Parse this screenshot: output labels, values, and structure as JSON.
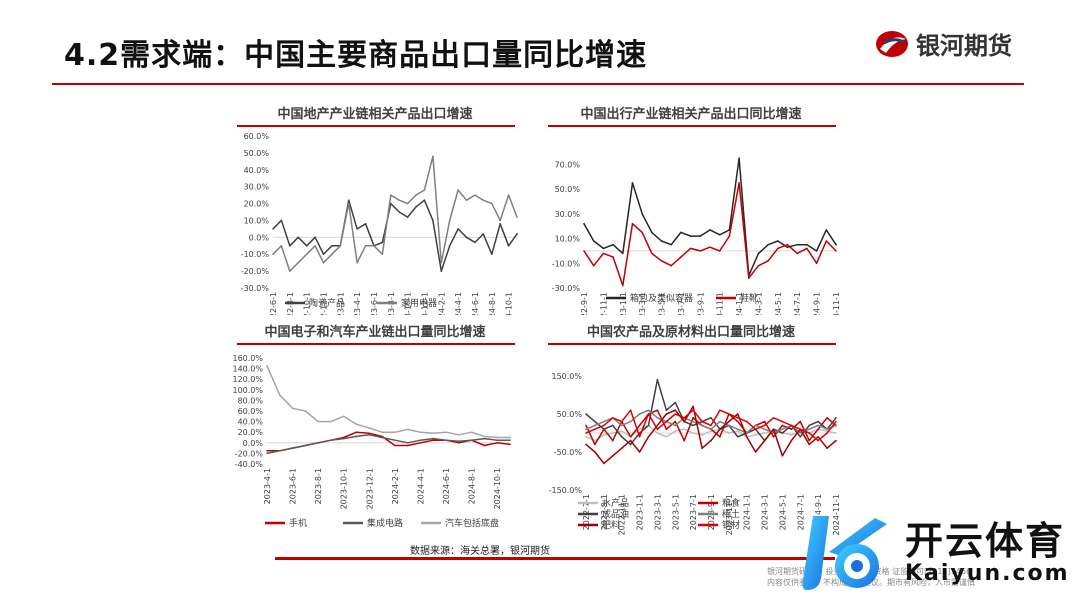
{
  "header": {
    "title": "4.2需求端：中国主要商品出口量同比增速",
    "logo_text": "银河期货"
  },
  "footer": {
    "source": "数据来源：海关总署，银河期货",
    "disclaimer_line1": "银河期货研究所 投资咨询业务资格 证监许可[2011]1466",
    "disclaimer_line2": "内容仅供参考，不构成投资建议。期市有风险，入市需谨慎"
  },
  "watermark": {
    "cn": "开云体育",
    "en": "Kaiyun.com"
  },
  "colors": {
    "brand_red": "#c00000",
    "dark_gray": "#404040",
    "mid_gray": "#808080",
    "light_gray": "#a6a6a6"
  },
  "chart_data": [
    {
      "type": "line",
      "title": "中国地产产业链相关产品出口增速",
      "x": [
        "2022-6-1",
        "2022-7-1",
        "2022-8-1",
        "2022-9-1",
        "2022-10-1",
        "2022-11-1",
        "2022-12-1",
        "2023-1-1",
        "2023-2-1",
        "2023-3-1",
        "2023-4-1",
        "2023-5-1",
        "2023-6-1",
        "2023-7-1",
        "2023-8-1",
        "2023-9-1",
        "2023-10-1",
        "2023-11-1",
        "2023-12-1",
        "2024-1-1",
        "2024-2-1",
        "2024-3-1",
        "2024-4-1",
        "2024-5-1",
        "2024-6-1",
        "2024-7-1",
        "2024-8-1",
        "2024-9-1",
        "2024-10-1",
        "2024-11-1"
      ],
      "xticks": [
        "2022-6-1",
        "2022-8-1",
        "2022-10-1",
        "2022-12-1",
        "2023-2-1",
        "2023-4-1",
        "2023-6-1",
        "2023-8-1",
        "2023-10-1",
        "2023-12-1",
        "2024-2-1",
        "2024-4-1",
        "2024-6-1",
        "2024-8-1",
        "2024-10-1"
      ],
      "ylim": [
        -30,
        60
      ],
      "yticks": [
        -30,
        -20,
        -10,
        0,
        10,
        20,
        30,
        40,
        50,
        60
      ],
      "ytick_labels": [
        "-30.0%",
        "-20.0%",
        "-10.0%",
        "0.0%",
        "10.0%",
        "20.0%",
        "30.0%",
        "40.0%",
        "50.0%",
        "60.0%"
      ],
      "series": [
        {
          "name": "陶瓷产品",
          "color": "#404040",
          "values": [
            5,
            10,
            -5,
            0,
            -5,
            0,
            -10,
            -5,
            -5,
            22,
            5,
            8,
            -5,
            -3,
            20,
            15,
            12,
            18,
            22,
            10,
            -20,
            -5,
            5,
            0,
            -3,
            2,
            -10,
            8,
            -5,
            2
          ]
        },
        {
          "name": "家用电器",
          "color": "#808080",
          "values": [
            -10,
            -5,
            -20,
            -15,
            -10,
            -5,
            -15,
            -10,
            -5,
            20,
            -15,
            -5,
            -5,
            -10,
            25,
            22,
            20,
            25,
            28,
            48,
            -15,
            10,
            28,
            22,
            25,
            22,
            20,
            10,
            25,
            12
          ]
        }
      ]
    },
    {
      "type": "line",
      "title": "中国出行产业链相关产品出口同比增速",
      "x": [
        "2022-9-1",
        "2022-10-1",
        "2022-11-1",
        "2022-12-1",
        "2023-1-1",
        "2023-2-1",
        "2023-3-1",
        "2023-4-1",
        "2023-5-1",
        "2023-6-1",
        "2023-7-1",
        "2023-8-1",
        "2023-9-1",
        "2023-10-1",
        "2023-11-1",
        "2023-12-1",
        "2024-1-1",
        "2024-2-1",
        "2024-3-1",
        "2024-4-1",
        "2024-5-1",
        "2024-6-1",
        "2024-7-1",
        "2024-8-1",
        "2024-9-1",
        "2024-10-1",
        "2024-11-1"
      ],
      "xticks": [
        "2022-9-1",
        "2022-11-1",
        "2023-1-1",
        "2023-3-1",
        "2023-5-1",
        "2023-7-1",
        "2023-9-1",
        "2023-11-1",
        "2024-1-1",
        "2024-3-1",
        "2024-5-1",
        "2024-7-1",
        "2024-9-1",
        "2024-11-1"
      ],
      "ylim": [
        -30,
        80
      ],
      "yticks": [
        -30,
        -10,
        10,
        30,
        50,
        70
      ],
      "ytick_labels": [
        "-30.0%",
        "-10.0%",
        "10.0%",
        "30.0%",
        "50.0%",
        "70.0%"
      ],
      "series": [
        {
          "name": "箱包及类似容器",
          "color": "#262626",
          "values": [
            22,
            8,
            2,
            5,
            -2,
            55,
            30,
            15,
            8,
            5,
            15,
            12,
            12,
            17,
            13,
            17,
            75,
            -20,
            -2,
            5,
            8,
            3,
            5,
            5,
            0,
            17,
            5
          ]
        },
        {
          "name": "鞋靴",
          "color": "#c00000",
          "values": [
            0,
            -12,
            -2,
            -5,
            -28,
            22,
            15,
            -2,
            -8,
            -12,
            -5,
            2,
            0,
            3,
            0,
            12,
            55,
            -22,
            -12,
            -8,
            2,
            5,
            -2,
            2,
            -10,
            8,
            0
          ]
        }
      ]
    },
    {
      "type": "line",
      "title": "中国电子和汽车产业链出口量同比增速",
      "x": [
        "2023-4-1",
        "2023-5-1",
        "2023-6-1",
        "2023-7-1",
        "2023-8-1",
        "2023-9-1",
        "2023-10-1",
        "2023-11-1",
        "2023-12-1",
        "2024-1-1",
        "2024-2-1",
        "2024-3-1",
        "2024-4-1",
        "2024-5-1",
        "2024-6-1",
        "2024-7-1",
        "2024-8-1",
        "2024-9-1",
        "2024-10-1",
        "2024-11-1"
      ],
      "xticks": [
        "2023-4-1",
        "2023-6-1",
        "2023-8-1",
        "2023-10-1",
        "2023-12-1",
        "2024-2-1",
        "2024-4-1",
        "2024-6-1",
        "2024-8-1",
        "2024-10-1"
      ],
      "ylim": [
        -40,
        160
      ],
      "yticks": [
        -40,
        -20,
        0,
        20,
        40,
        60,
        80,
        100,
        120,
        140,
        160
      ],
      "ytick_labels": [
        "-40.0%",
        "-20.0%",
        "0.0%",
        "20.0%",
        "40.0%",
        "60.0%",
        "80.0%",
        "100.0%",
        "120.0%",
        "140.0%",
        "160.0%"
      ],
      "series": [
        {
          "name": "手机",
          "color": "#c00000",
          "values": [
            -15,
            -15,
            -10,
            -5,
            0,
            5,
            10,
            20,
            18,
            12,
            -5,
            -5,
            0,
            5,
            5,
            0,
            5,
            -5,
            0,
            -3
          ]
        },
        {
          "name": "集成电路",
          "color": "#595959",
          "values": [
            -20,
            -15,
            -10,
            -5,
            0,
            5,
            8,
            12,
            15,
            10,
            5,
            0,
            5,
            8,
            5,
            3,
            5,
            8,
            5,
            5
          ]
        },
        {
          "name": "汽车包括底盘",
          "color": "#a6a6a6",
          "values": [
            145,
            90,
            65,
            60,
            40,
            40,
            50,
            35,
            28,
            20,
            20,
            25,
            20,
            18,
            20,
            15,
            20,
            12,
            10,
            10
          ]
        }
      ]
    },
    {
      "type": "line",
      "title": "中国农产品及原材料出口量同比增速",
      "x": [
        "2022-7-1",
        "2022-8-1",
        "2022-9-1",
        "2022-10-1",
        "2022-11-1",
        "2022-12-1",
        "2023-1-1",
        "2023-2-1",
        "2023-3-1",
        "2023-4-1",
        "2023-5-1",
        "2023-6-1",
        "2023-7-1",
        "2023-8-1",
        "2023-9-1",
        "2023-10-1",
        "2023-11-1",
        "2023-12-1",
        "2024-1-1",
        "2024-2-1",
        "2024-3-1",
        "2024-4-1",
        "2024-5-1",
        "2024-6-1",
        "2024-7-1",
        "2024-8-1",
        "2024-9-1",
        "2024-10-1",
        "2024-11-1"
      ],
      "xticks": [
        "2022-7-1",
        "2022-9-1",
        "2022-11-1",
        "2023-1-1",
        "2023-3-1",
        "2023-5-1",
        "2023-7-1",
        "2023-9-1",
        "2023-11-1",
        "2024-1-1",
        "2024-3-1",
        "2024-5-1",
        "2024-7-1",
        "2024-9-1",
        "2024-11-1"
      ],
      "ylim": [
        -150,
        150
      ],
      "yticks": [
        -150,
        -50,
        50,
        150
      ],
      "ytick_labels": [
        "-150.0%",
        "-50.0%",
        "50.0%",
        "150.0%"
      ],
      "series": [
        {
          "name": "水产品",
          "color": "#bfbfbf",
          "values": [
            -10,
            -20,
            -5,
            0,
            5,
            -10,
            10,
            20,
            0,
            -10,
            5,
            10,
            0,
            -5,
            5,
            10,
            0,
            5,
            -10,
            -5,
            0,
            5,
            0,
            -5,
            5,
            0,
            10,
            5,
            0
          ]
        },
        {
          "name": "粮食",
          "color": "#c00000",
          "values": [
            20,
            -30,
            10,
            -20,
            30,
            -10,
            20,
            50,
            60,
            10,
            30,
            -20,
            40,
            20,
            10,
            -10,
            50,
            30,
            0,
            20,
            30,
            -10,
            20,
            10,
            30,
            -20,
            10,
            40,
            20
          ]
        },
        {
          "name": "成品油",
          "color": "#404040",
          "values": [
            50,
            30,
            10,
            20,
            -10,
            -30,
            0,
            20,
            140,
            60,
            80,
            30,
            20,
            30,
            40,
            10,
            20,
            -10,
            0,
            10,
            -20,
            10,
            0,
            20,
            -10,
            20,
            30,
            10,
            40
          ]
        },
        {
          "name": "稀土",
          "color": "#7f7f7f",
          "values": [
            10,
            20,
            30,
            40,
            20,
            30,
            50,
            60,
            40,
            30,
            20,
            40,
            30,
            20,
            10,
            30,
            20,
            10,
            0,
            20,
            10,
            0,
            10,
            20,
            0,
            10,
            20,
            10,
            20
          ]
        },
        {
          "name": "肥料",
          "color": "#a00000",
          "values": [
            -30,
            -50,
            -80,
            -60,
            -40,
            -20,
            -50,
            -10,
            20,
            50,
            60,
            30,
            70,
            -40,
            -20,
            10,
            30,
            50,
            -10,
            -50,
            -20,
            10,
            -60,
            -20,
            10,
            -30,
            -10,
            -40,
            -20
          ]
        },
        {
          "name": "钢材",
          "color": "#e00000",
          "values": [
            0,
            10,
            20,
            40,
            30,
            60,
            -10,
            50,
            10,
            30,
            50,
            40,
            60,
            30,
            20,
            60,
            50,
            40,
            30,
            10,
            20,
            40,
            30,
            20,
            10,
            0,
            -20,
            0,
            30
          ]
        }
      ]
    }
  ]
}
